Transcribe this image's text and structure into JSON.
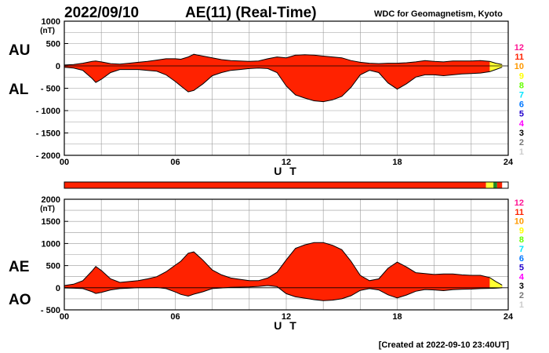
{
  "header": {
    "date": "2022/09/10",
    "title": "AE(11) (Real-Time)",
    "source": "WDC for Geomagnetism, Kyoto",
    "created": "[Created at 2022-09-10 23:40UT]"
  },
  "colors": {
    "fill_main": "#ff2200",
    "fill_yellow": "#ffff33",
    "outline": "#000000",
    "grid": "#999999"
  },
  "legend_numbers": [
    {
      "label": "12",
      "color": "#ff1493"
    },
    {
      "label": "11",
      "color": "#ff2200"
    },
    {
      "label": "10",
      "color": "#ff9900"
    },
    {
      "label": "9",
      "color": "#ffff00"
    },
    {
      "label": "8",
      "color": "#66ff00"
    },
    {
      "label": "7",
      "color": "#00e5ff"
    },
    {
      "label": "6",
      "color": "#0077ff"
    },
    {
      "label": "5",
      "color": "#2200cc"
    },
    {
      "label": "4",
      "color": "#ff00ff"
    },
    {
      "label": "3",
      "color": "#000000"
    },
    {
      "label": "2",
      "color": "#777777"
    },
    {
      "label": "1",
      "color": "#cccccc"
    }
  ],
  "station_bar": {
    "segments": [
      {
        "from": 0,
        "to": 22.8,
        "color": "#ff2200"
      },
      {
        "from": 22.8,
        "to": 23.2,
        "color": "#ffff33"
      },
      {
        "from": 23.2,
        "to": 23.4,
        "color": "#228822"
      },
      {
        "from": 23.4,
        "to": 23.67,
        "color": "#ff2200"
      }
    ]
  },
  "chart_data": [
    {
      "type": "area",
      "series_labels": [
        "AU",
        "AL"
      ],
      "y_unit": "(nT)",
      "xlabel": "U T",
      "x_ticks": [
        "00",
        "06",
        "12",
        "18",
        "24"
      ],
      "y_ticks": [
        "1000",
        "500",
        "0",
        "- 500",
        "- 1000",
        "- 1500",
        "- 2000"
      ],
      "xlim": [
        0,
        24
      ],
      "ylim": [
        -2000,
        1000
      ],
      "grid": true,
      "x": [
        0,
        0.5,
        1,
        1.5,
        1.7,
        2,
        2.5,
        3,
        3.5,
        4,
        4.5,
        5,
        5.5,
        6,
        6.3,
        6.7,
        7,
        7.5,
        8,
        8.5,
        9,
        9.5,
        10,
        10.5,
        11,
        11.5,
        12,
        12.5,
        13,
        13.5,
        14,
        14.5,
        15,
        15.5,
        16,
        16.5,
        17,
        17.5,
        18,
        18.5,
        19,
        19.5,
        20,
        20.5,
        21,
        21.5,
        22,
        22.5,
        23,
        23.33,
        23.67
      ],
      "series": [
        {
          "name": "AU",
          "values": [
            20,
            30,
            60,
            100,
            110,
            90,
            50,
            40,
            60,
            80,
            100,
            130,
            160,
            160,
            150,
            200,
            260,
            220,
            180,
            140,
            120,
            110,
            100,
            110,
            160,
            200,
            180,
            240,
            250,
            240,
            220,
            200,
            180,
            120,
            80,
            60,
            50,
            60,
            60,
            70,
            90,
            120,
            100,
            90,
            110,
            110,
            110,
            120,
            100,
            60,
            30
          ]
        },
        {
          "name": "AL",
          "values": [
            -30,
            -50,
            -100,
            -280,
            -370,
            -300,
            -150,
            -80,
            -80,
            -80,
            -100,
            -120,
            -200,
            -350,
            -450,
            -580,
            -550,
            -400,
            -220,
            -150,
            -100,
            -80,
            -60,
            -50,
            -60,
            -150,
            -450,
            -650,
            -720,
            -780,
            -800,
            -760,
            -680,
            -480,
            -200,
            -100,
            -150,
            -380,
            -520,
            -400,
            -250,
            -200,
            -200,
            -220,
            -200,
            -180,
            -170,
            -160,
            -130,
            -80,
            -30
          ]
        }
      ]
    },
    {
      "type": "area",
      "series_labels": [
        "AE",
        "AO"
      ],
      "y_unit": "(nT)",
      "xlabel": "U T",
      "x_ticks": [
        "00",
        "06",
        "12",
        "18",
        "24"
      ],
      "y_ticks": [
        "2000",
        "1500",
        "1000",
        "500",
        "0",
        "- 500"
      ],
      "xlim": [
        0,
        24
      ],
      "ylim": [
        -500,
        2000
      ],
      "grid": true,
      "x": [
        0,
        0.5,
        1,
        1.5,
        1.7,
        2,
        2.5,
        3,
        3.5,
        4,
        4.5,
        5,
        5.5,
        6,
        6.3,
        6.7,
        7,
        7.5,
        8,
        8.5,
        9,
        9.5,
        10,
        10.5,
        11,
        11.5,
        12,
        12.5,
        13,
        13.5,
        14,
        14.5,
        15,
        15.5,
        16,
        16.5,
        17,
        17.5,
        18,
        18.5,
        19,
        19.5,
        20,
        20.5,
        21,
        21.5,
        22,
        22.5,
        23,
        23.33,
        23.67
      ],
      "series": [
        {
          "name": "AE",
          "values": [
            50,
            80,
            160,
            380,
            480,
            390,
            200,
            120,
            140,
            160,
            200,
            250,
            360,
            510,
            600,
            780,
            810,
            620,
            400,
            290,
            220,
            190,
            160,
            160,
            220,
            350,
            630,
            890,
            970,
            1020,
            1020,
            960,
            860,
            600,
            280,
            160,
            200,
            440,
            580,
            470,
            340,
            320,
            300,
            310,
            310,
            290,
            280,
            280,
            230,
            140,
            60
          ]
        },
        {
          "name": "AO",
          "values": [
            -5,
            -10,
            -20,
            -90,
            -130,
            -105,
            -50,
            -20,
            -10,
            0,
            0,
            5,
            -20,
            -95,
            -150,
            -190,
            -145,
            -90,
            -20,
            -5,
            10,
            15,
            20,
            30,
            50,
            25,
            -135,
            -205,
            -235,
            -270,
            -290,
            -280,
            -250,
            -180,
            -60,
            -20,
            -50,
            -160,
            -230,
            -165,
            -80,
            -40,
            -50,
            -65,
            -45,
            -35,
            -30,
            -20,
            -15,
            -10,
            0
          ]
        }
      ]
    }
  ]
}
